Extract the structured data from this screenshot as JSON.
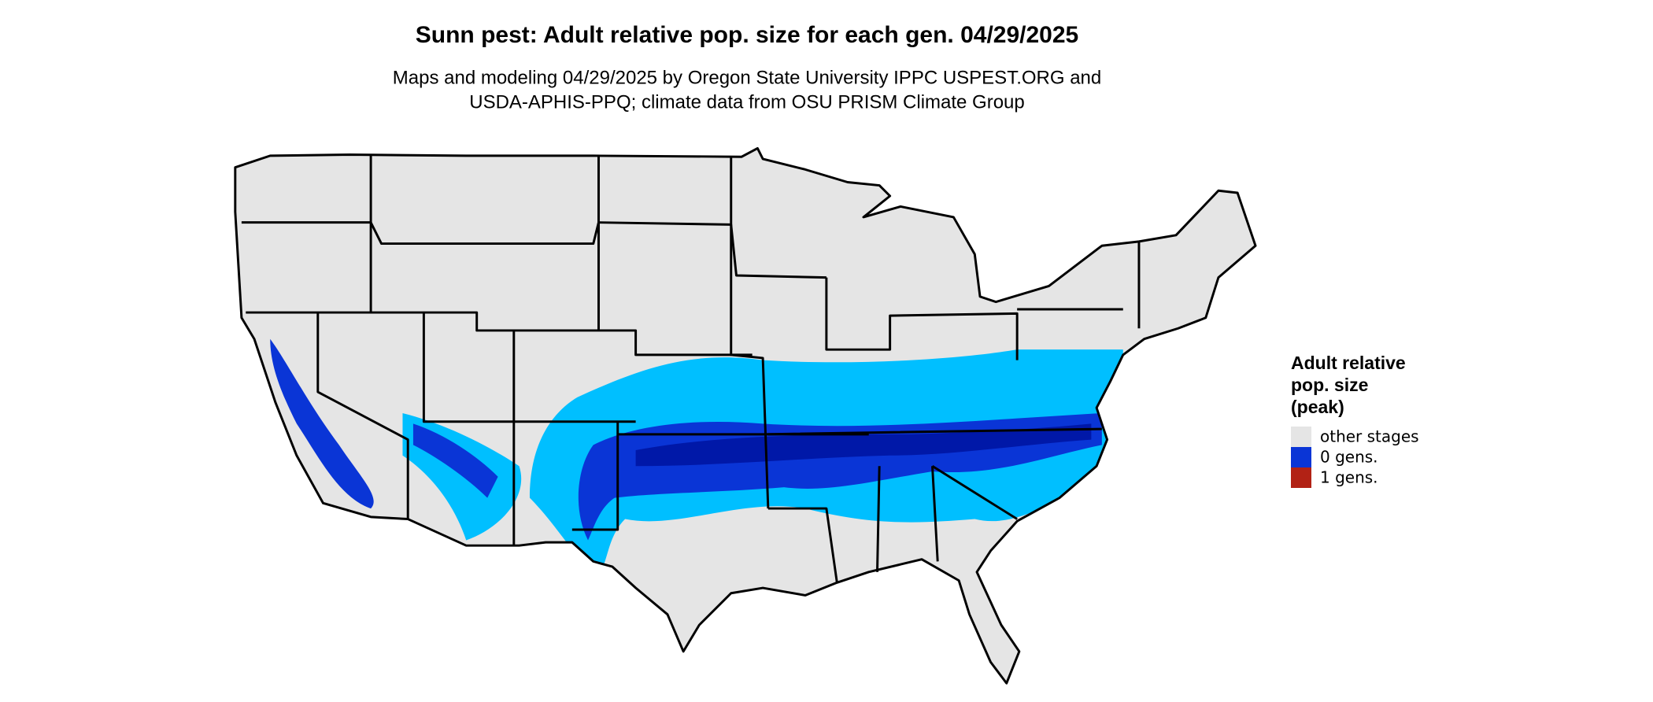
{
  "header": {
    "title": "Sunn pest: Adult relative pop. size for each gen. 04/29/2025",
    "subtitle": [
      "Maps and modeling 04/29/2025 by Oregon State University IPPC USPEST.ORG and",
      "USDA-APHIS-PPQ; climate data from OSU PRISM Climate Group"
    ]
  },
  "legend": {
    "title": [
      "Adult relative",
      "pop. size",
      "(peak)"
    ],
    "items": [
      {
        "label": "other stages",
        "color": "#e5e5e5"
      },
      {
        "label": "0 gens.",
        "color": "#0a35d6"
      },
      {
        "label": "1 gens.",
        "color": "#b22215"
      }
    ]
  }
}
